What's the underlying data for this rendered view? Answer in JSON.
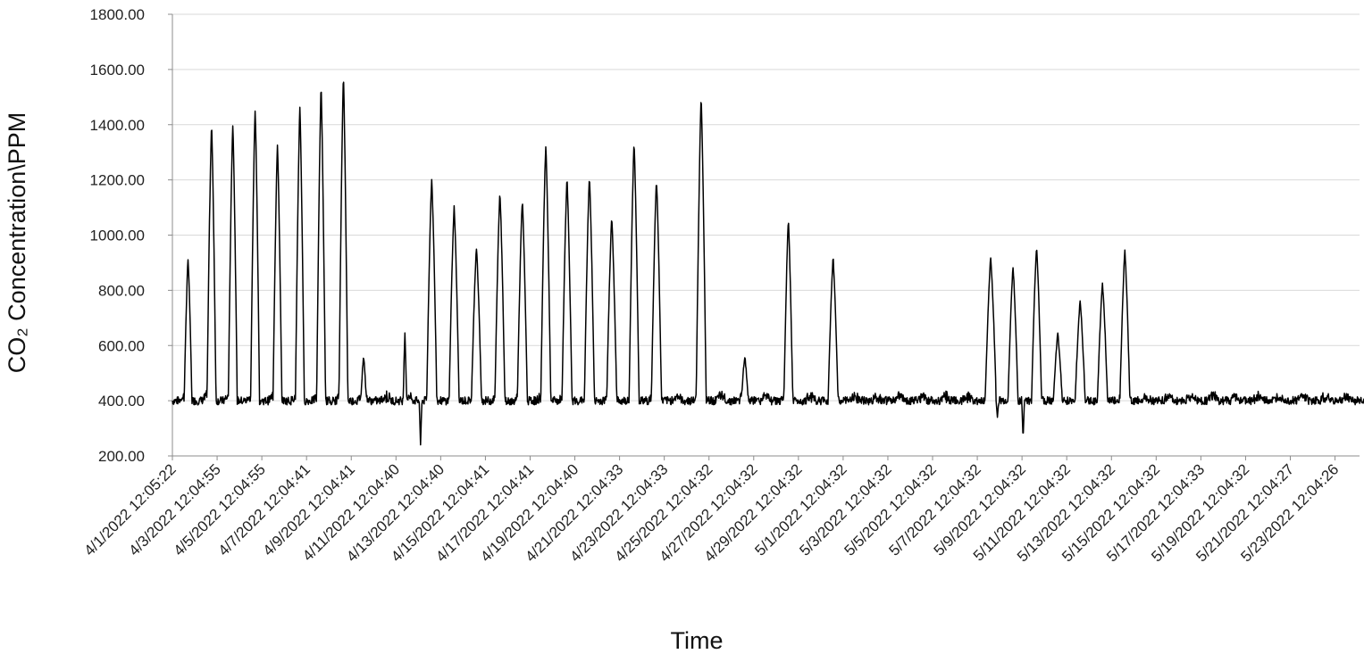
{
  "chart_data": {
    "type": "line",
    "ylabel": "CO₂ Concentration\\PPM",
    "xlabel": "Time",
    "ylim": [
      200,
      1800
    ],
    "yticks": [
      "200.00",
      "400.00",
      "600.00",
      "800.00",
      "1000.00",
      "1200.00",
      "1400.00",
      "1600.00",
      "1800.00"
    ],
    "grid": true,
    "legend": "none",
    "x_range_days": [
      0,
      53.4
    ],
    "x_tick_labels": [
      "4/1/2022 12:05:22",
      "4/3/2022 12:04:55",
      "4/5/2022 12:04:55",
      "4/7/2022 12:04:41",
      "4/9/2022 12:04:41",
      "4/11/2022 12:04:40",
      "4/13/2022 12:04:40",
      "4/15/2022 12:04:41",
      "4/17/2022 12:04:41",
      "4/19/2022 12:04:40",
      "4/21/2022 12:04:33",
      "4/23/2022 12:04:33",
      "4/25/2022 12:04:32",
      "4/27/2022 12:04:32",
      "4/29/2022 12:04:32",
      "5/1/2022 12:04:32",
      "5/3/2022 12:04:32",
      "5/5/2022 12:04:32",
      "5/7/2022 12:04:32",
      "5/9/2022 12:04:32",
      "5/11/2022 12:04:32",
      "5/13/2022 12:04:32",
      "5/15/2022 12:04:32",
      "5/17/2022 12:04:33",
      "5/19/2022 12:04:32",
      "5/21/2022 12:04:27",
      "5/23/2022 12:04:26"
    ],
    "baseline_ppm": 400,
    "peaks": [
      {
        "day": 0.7,
        "ppm": 910,
        "width": 0.35
      },
      {
        "day": 1.75,
        "ppm": 1400,
        "width": 0.4
      },
      {
        "day": 2.7,
        "ppm": 1400,
        "width": 0.4
      },
      {
        "day": 3.7,
        "ppm": 1450,
        "width": 0.4
      },
      {
        "day": 4.7,
        "ppm": 1320,
        "width": 0.4
      },
      {
        "day": 5.7,
        "ppm": 1460,
        "width": 0.4
      },
      {
        "day": 6.65,
        "ppm": 1535,
        "width": 0.4
      },
      {
        "day": 7.65,
        "ppm": 1575,
        "width": 0.4
      },
      {
        "day": 8.55,
        "ppm": 560,
        "width": 0.25
      },
      {
        "day": 10.4,
        "ppm": 640,
        "width": 0.15
      },
      {
        "day": 11.6,
        "ppm": 1200,
        "width": 0.45
      },
      {
        "day": 12.6,
        "ppm": 1100,
        "width": 0.45
      },
      {
        "day": 13.6,
        "ppm": 950,
        "width": 0.45
      },
      {
        "day": 14.65,
        "ppm": 1150,
        "width": 0.45
      },
      {
        "day": 15.65,
        "ppm": 1120,
        "width": 0.45
      },
      {
        "day": 16.7,
        "ppm": 1320,
        "width": 0.45
      },
      {
        "day": 17.65,
        "ppm": 1200,
        "width": 0.45
      },
      {
        "day": 18.65,
        "ppm": 1210,
        "width": 0.45
      },
      {
        "day": 19.65,
        "ppm": 1060,
        "width": 0.45
      },
      {
        "day": 20.65,
        "ppm": 1330,
        "width": 0.45
      },
      {
        "day": 21.65,
        "ppm": 1190,
        "width": 0.45
      },
      {
        "day": 23.65,
        "ppm": 1495,
        "width": 0.45
      },
      {
        "day": 25.6,
        "ppm": 560,
        "width": 0.3
      },
      {
        "day": 27.55,
        "ppm": 1050,
        "width": 0.4
      },
      {
        "day": 29.55,
        "ppm": 915,
        "width": 0.45
      },
      {
        "day": 36.6,
        "ppm": 915,
        "width": 0.5
      },
      {
        "day": 37.6,
        "ppm": 880,
        "width": 0.45
      },
      {
        "day": 38.65,
        "ppm": 955,
        "width": 0.45
      },
      {
        "day": 39.6,
        "ppm": 640,
        "width": 0.4
      },
      {
        "day": 40.6,
        "ppm": 760,
        "width": 0.45
      },
      {
        "day": 41.6,
        "ppm": 820,
        "width": 0.45
      },
      {
        "day": 42.6,
        "ppm": 940,
        "width": 0.45
      }
    ],
    "dips": [
      {
        "day": 11.1,
        "ppm": 240
      },
      {
        "day": 36.9,
        "ppm": 340
      },
      {
        "day": 38.05,
        "ppm": 260
      }
    ]
  }
}
